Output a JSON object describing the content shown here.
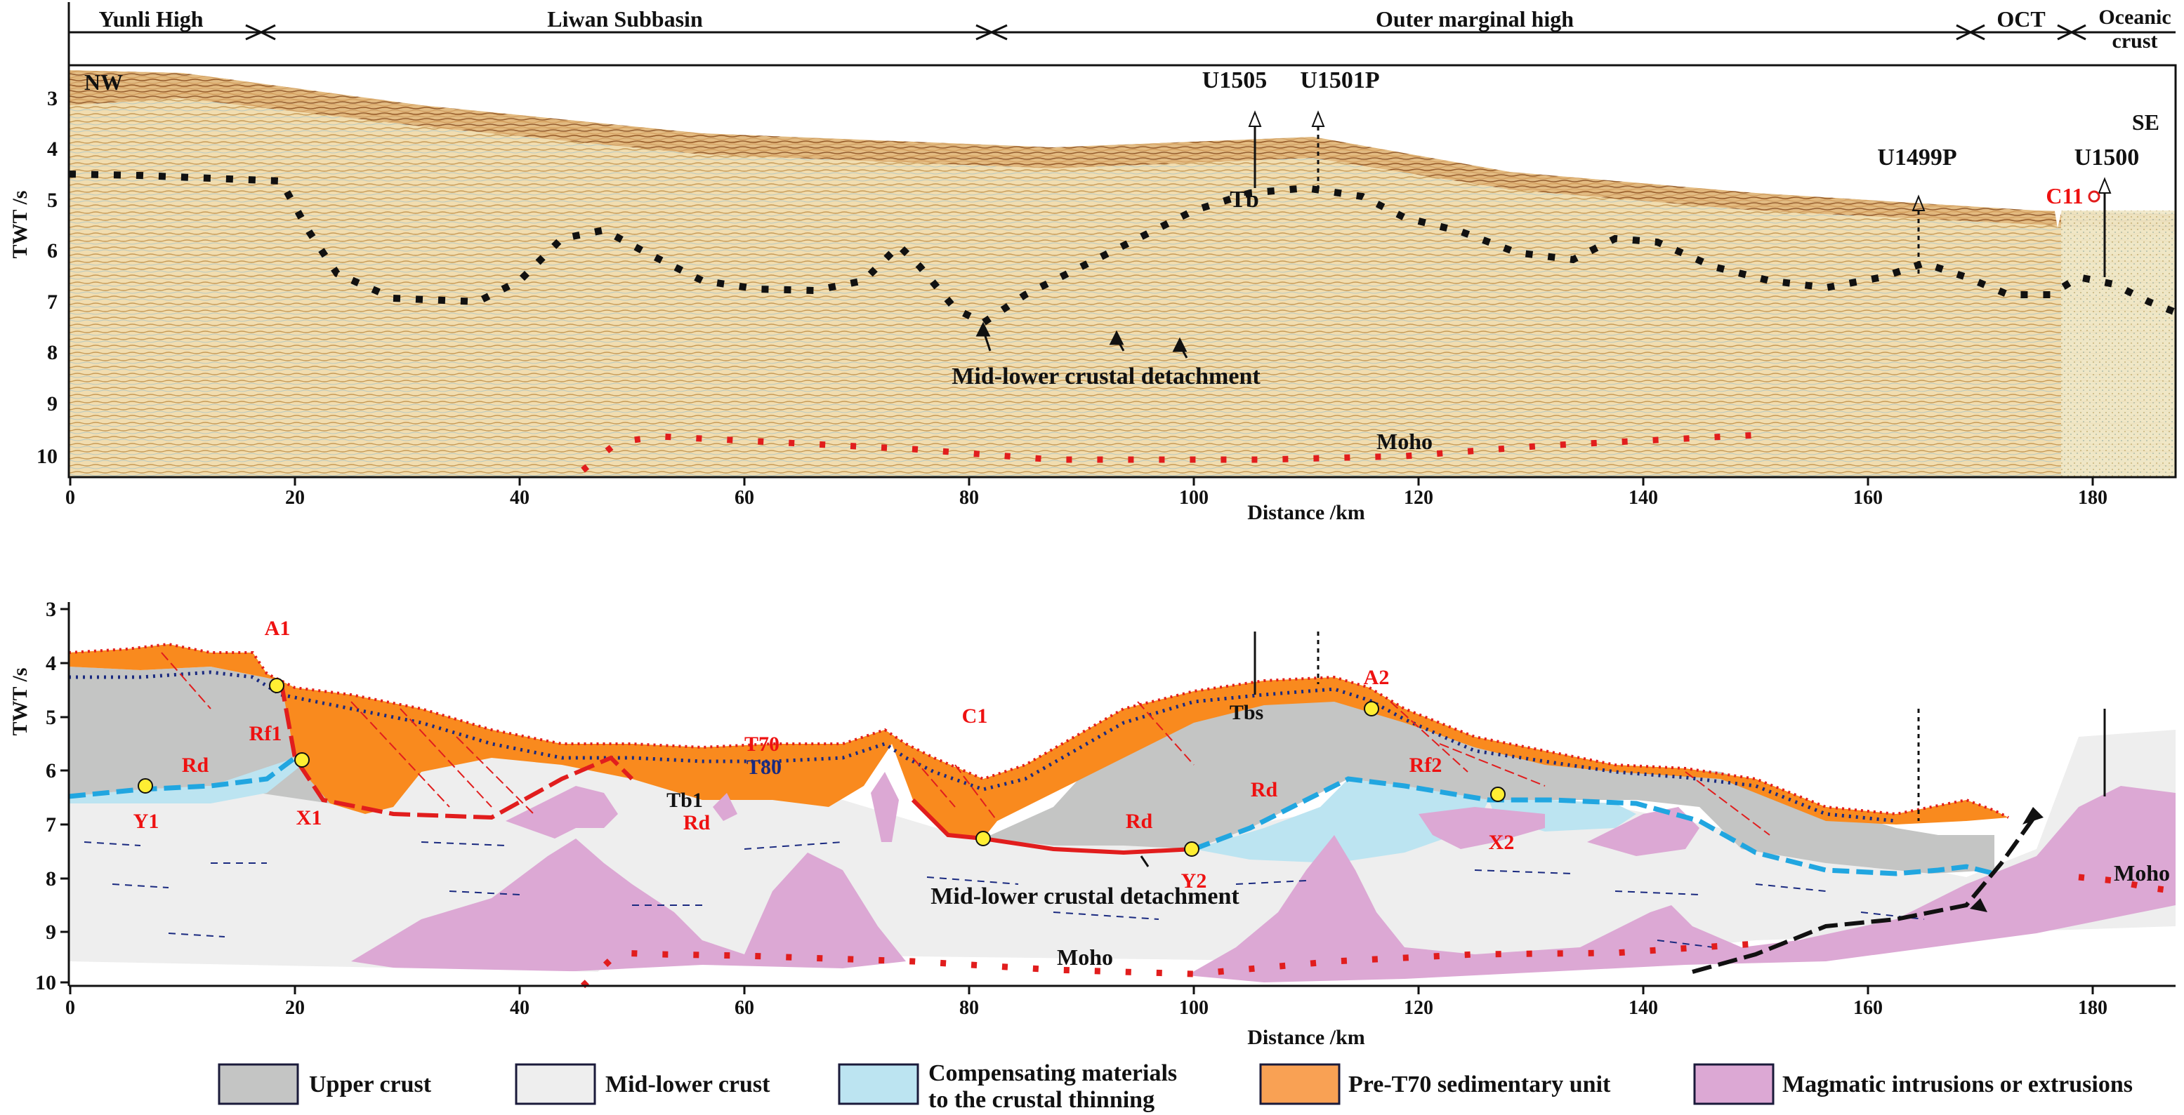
{
  "top_bar": {
    "provinces": [
      "Yunli High",
      "Liwan Subbasin",
      "Outer marginal high",
      "OCT",
      "Oceanic",
      "crust"
    ]
  },
  "top_panel": {
    "corner_left": "NW",
    "corner_right": "SE",
    "y_axis_title": "TWT  /s",
    "y_ticks": [
      "3",
      "4",
      "5",
      "6",
      "7",
      "8",
      "9",
      "10"
    ],
    "x_ticks": [
      "0",
      "20",
      "40",
      "60",
      "80",
      "100",
      "120",
      "140",
      "160",
      "180"
    ],
    "x_axis_title": "Distance /km",
    "wells": [
      "U1505",
      "U1501P",
      "U1499P",
      "U1500"
    ],
    "labels": {
      "tb": "Tb",
      "c11": "C11",
      "detachment": "Mid-lower crustal detachment",
      "moho": "Moho"
    }
  },
  "bottom_panel": {
    "y_axis_title": "TWT  /s",
    "y_ticks": [
      "3",
      "4",
      "5",
      "6",
      "7",
      "8",
      "9",
      "10"
    ],
    "x_ticks": [
      "0",
      "20",
      "40",
      "60",
      "80",
      "100",
      "120",
      "140",
      "160",
      "180"
    ],
    "x_axis_title": "Distance /km",
    "labels": {
      "a1": "A1",
      "rf1": "Rf1",
      "rd1": "Rd",
      "y1": "Y1",
      "x1": "X1",
      "t70": "T70",
      "t80": "T80",
      "tb1": "Tb1",
      "rd2": "Rd",
      "c1": "C1",
      "rd3": "Rd",
      "y2": "Y2",
      "tbs": "Tbs",
      "a2": "A2",
      "rd4": "Rd",
      "rf2": "Rf2",
      "x2": "X2",
      "detachment": "Mid-lower crustal detachment",
      "moho1": "Moho",
      "moho2": "Moho"
    }
  },
  "legend": [
    {
      "label": "Upper crust",
      "color": "#c4c5c4"
    },
    {
      "label": "Mid-lower crust",
      "color": "#eeeeee"
    },
    {
      "label": "Compensating materials",
      "label2": "to the crustal thinning",
      "color": "#bce4f1"
    },
    {
      "label": "Pre-T70 sedimentary unit",
      "color": "#f9a154"
    },
    {
      "label": "Magmatic intrusions or extrusions",
      "color": "#dca8d4"
    }
  ],
  "colors": {
    "seismic_bg": "#efdcb0",
    "orange": "#f98a1e",
    "upper_crust": "#c4c5c4",
    "mid_lower_crust": "#eeeeee",
    "blue_comp": "#bce4f1",
    "magmatic": "#dca8d4",
    "red": "#e11d1d",
    "dark_blue_dots": "#1a2a80",
    "cyan_dash": "#21a6e0"
  }
}
